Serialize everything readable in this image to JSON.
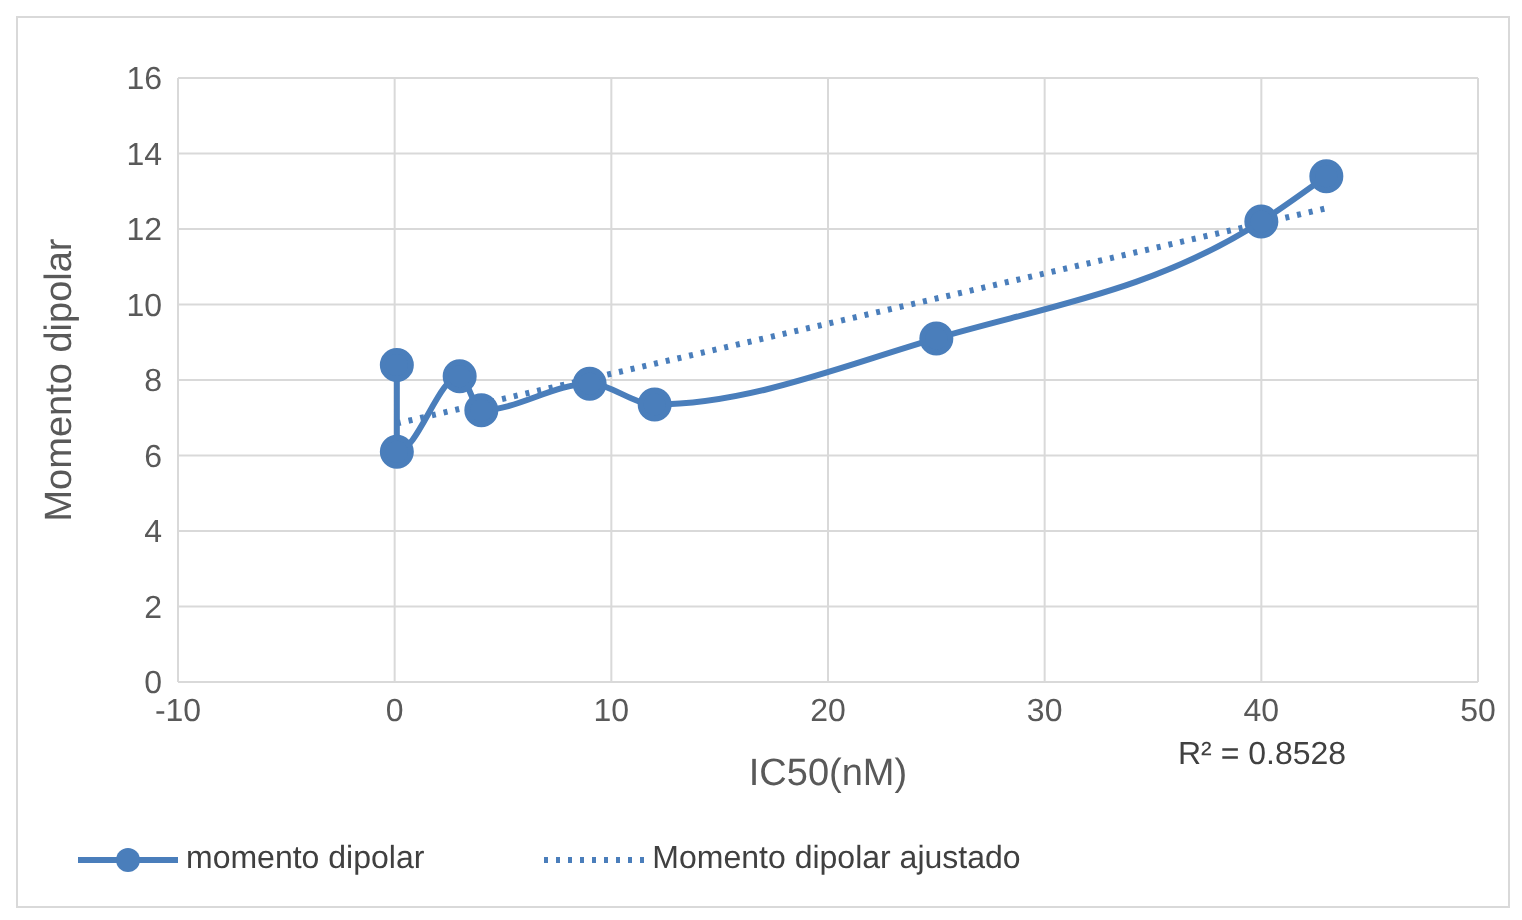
{
  "chart_data": {
    "type": "line",
    "xlabel": "IC50(nM)",
    "ylabel": "Momento dipolar",
    "xlim": [
      -10,
      50
    ],
    "xticks": [
      -10,
      0,
      10,
      20,
      30,
      40,
      50
    ],
    "ylim": [
      0,
      16
    ],
    "yticks": [
      0,
      2,
      4,
      6,
      8,
      10,
      12,
      14,
      16
    ],
    "grid": true,
    "legend": "bottom",
    "series": [
      {
        "name": "momento dipolar",
        "color": "#4a7ebb",
        "marker": "circle",
        "line_style": "solid",
        "x": [
          0.1,
          0.1,
          3,
          4,
          9,
          12,
          25,
          40,
          43
        ],
        "values": [
          8.4,
          6.1,
          8.1,
          7.2,
          7.9,
          7.35,
          9.1,
          12.2,
          13.4
        ]
      },
      {
        "name": "Momento dipolar ajustado",
        "color": "#4a7ebb",
        "marker": "none",
        "line_style": "dotted",
        "x": [
          0.1,
          43
        ],
        "values": [
          6.85,
          12.55
        ]
      }
    ],
    "annotations": [
      "R² = 0.8528"
    ]
  }
}
